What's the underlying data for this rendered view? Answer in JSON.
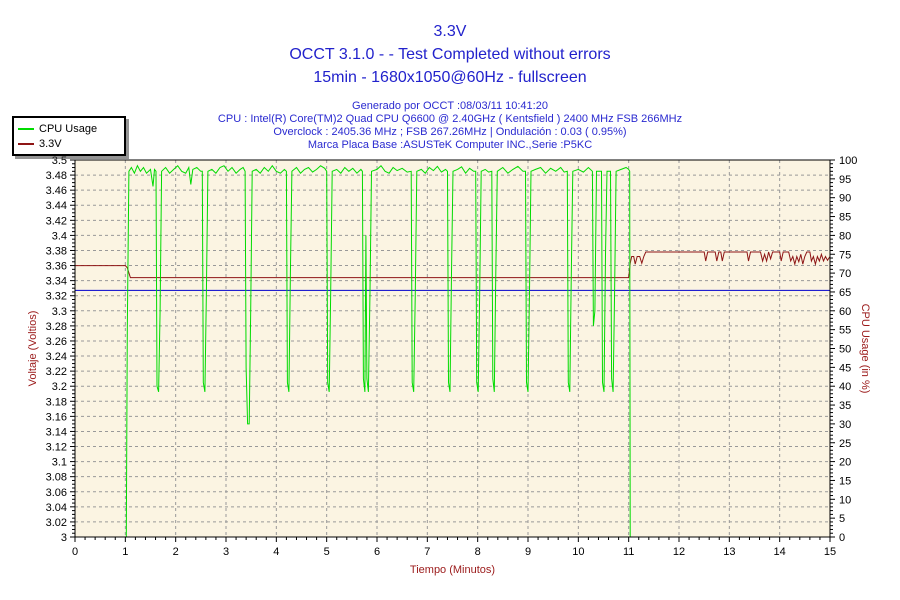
{
  "header": {
    "title": "3.3V",
    "subtitle": "OCCT 3.1.0 -  - Test Completed without errors",
    "subtitle2": "15min - 1680x1050@60Hz - fullscreen",
    "info_lines": [
      "Generado por OCCT :08/03/11 10:41:20",
      "CPU : Intel(R) Core(TM)2 Quad CPU Q6600 @ 2.40GHz ( Kentsfield ) 2400 MHz FSB 266MHz",
      "Overclock : 2405.36 MHz ; FSB 267.26MHz | Ondulación : 0.03 ( 0.95%)",
      "Marca Placa Base :ASUSTeK Computer INC.,Serie :P5KC"
    ]
  },
  "legend": {
    "items": [
      {
        "label": "CPU Usage",
        "color": "#00db00"
      },
      {
        "label": "3.3V",
        "color": "#8e1515"
      }
    ]
  },
  "colors": {
    "title_text": "#2222cc",
    "axis_title_text": "#9b1a1a",
    "tick_text": "#000000",
    "plot_background": "#fbf4e2",
    "grid": "#999999",
    "axis": "#000000",
    "min_marker": "#0000cd"
  },
  "chart_data": {
    "type": "line",
    "title": "3.3V",
    "xlabel": "Tiempo (Minutos)",
    "ylabel_left": "Voltaje (Voltios)",
    "ylabel_right": "CPU Usage (in %)",
    "x_axis": {
      "min": 0,
      "max": 15,
      "major_tick": 1,
      "minor_tick": 0.2
    },
    "y_left": {
      "min": 3.0,
      "max": 3.5,
      "major_tick": 0.02,
      "minor_tick": 0.005
    },
    "y_right": {
      "min": 0,
      "max": 100,
      "major_tick": 5,
      "minor_tick": 1
    },
    "grid": true,
    "legend_position": "top-left",
    "series": [
      {
        "name": "CPU Usage",
        "axis": "right",
        "color": "#00db00",
        "points": [
          [
            1.02,
            0
          ],
          [
            1.04,
            55
          ],
          [
            1.07,
            97
          ],
          [
            1.12,
            98
          ],
          [
            1.18,
            96.5
          ],
          [
            1.24,
            98.5
          ],
          [
            1.3,
            97
          ],
          [
            1.36,
            98
          ],
          [
            1.42,
            96.5
          ],
          [
            1.5,
            97.5
          ],
          [
            1.55,
            93
          ],
          [
            1.58,
            97.5
          ],
          [
            1.61,
            97
          ],
          [
            1.63,
            40
          ],
          [
            1.66,
            38.5
          ],
          [
            1.69,
            60
          ],
          [
            1.72,
            97
          ],
          [
            1.8,
            98
          ],
          [
            1.88,
            96.5
          ],
          [
            1.96,
            97.5
          ],
          [
            2.04,
            98.5
          ],
          [
            2.12,
            97
          ],
          [
            2.2,
            96.5
          ],
          [
            2.26,
            98
          ],
          [
            2.3,
            93.5
          ],
          [
            2.34,
            97.5
          ],
          [
            2.42,
            98
          ],
          [
            2.5,
            97
          ],
          [
            2.53,
            97
          ],
          [
            2.55,
            41
          ],
          [
            2.58,
            38.5
          ],
          [
            2.61,
            65
          ],
          [
            2.64,
            97
          ],
          [
            2.72,
            97.5
          ],
          [
            2.8,
            96.5
          ],
          [
            2.88,
            98
          ],
          [
            2.96,
            98.5
          ],
          [
            3.04,
            97
          ],
          [
            3.12,
            98
          ],
          [
            3.2,
            96.5
          ],
          [
            3.28,
            97.5
          ],
          [
            3.34,
            98
          ],
          [
            3.38,
            97
          ],
          [
            3.4,
            45
          ],
          [
            3.43,
            30
          ],
          [
            3.46,
            30
          ],
          [
            3.49,
            60
          ],
          [
            3.52,
            97
          ],
          [
            3.6,
            97.5
          ],
          [
            3.68,
            96.5
          ],
          [
            3.76,
            98
          ],
          [
            3.84,
            97
          ],
          [
            3.92,
            98.5
          ],
          [
            4.0,
            97
          ],
          [
            4.08,
            96.5
          ],
          [
            4.16,
            97.5
          ],
          [
            4.2,
            97
          ],
          [
            4.22,
            41
          ],
          [
            4.25,
            38.5
          ],
          [
            4.28,
            70
          ],
          [
            4.31,
            97
          ],
          [
            4.4,
            98
          ],
          [
            4.48,
            96.5
          ],
          [
            4.56,
            97.5
          ],
          [
            4.64,
            98
          ],
          [
            4.72,
            96.8
          ],
          [
            4.8,
            97.5
          ],
          [
            4.88,
            98.5
          ],
          [
            4.96,
            97.8
          ],
          [
            5.0,
            97
          ],
          [
            5.02,
            41
          ],
          [
            5.05,
            38.5
          ],
          [
            5.08,
            65
          ],
          [
            5.11,
            97
          ],
          [
            5.2,
            97.5
          ],
          [
            5.28,
            96.5
          ],
          [
            5.36,
            98
          ],
          [
            5.44,
            97
          ],
          [
            5.52,
            97.8
          ],
          [
            5.6,
            96.5
          ],
          [
            5.68,
            97.5
          ],
          [
            5.71,
            97
          ],
          [
            5.73,
            42
          ],
          [
            5.76,
            38.5
          ],
          [
            5.78,
            80
          ],
          [
            5.8,
            42
          ],
          [
            5.83,
            38.5
          ],
          [
            5.86,
            65
          ],
          [
            5.89,
            97
          ],
          [
            6.0,
            97.5
          ],
          [
            6.08,
            98.5
          ],
          [
            6.16,
            97
          ],
          [
            6.24,
            96.5
          ],
          [
            6.32,
            98
          ],
          [
            6.4,
            97.2
          ],
          [
            6.5,
            97.8
          ],
          [
            6.6,
            96.8
          ],
          [
            6.68,
            97
          ],
          [
            6.7,
            41
          ],
          [
            6.73,
            38.5
          ],
          [
            6.76,
            65
          ],
          [
            6.79,
            97
          ],
          [
            6.88,
            97.5
          ],
          [
            6.96,
            96.5
          ],
          [
            7.04,
            98
          ],
          [
            7.12,
            97.2
          ],
          [
            7.2,
            98.3
          ],
          [
            7.28,
            96.8
          ],
          [
            7.36,
            97.5
          ],
          [
            7.4,
            97
          ],
          [
            7.42,
            41
          ],
          [
            7.45,
            38.5
          ],
          [
            7.48,
            70
          ],
          [
            7.51,
            97
          ],
          [
            7.6,
            97.5
          ],
          [
            7.68,
            98.2
          ],
          [
            7.76,
            96.5
          ],
          [
            7.84,
            97.8
          ],
          [
            7.92,
            97
          ],
          [
            7.96,
            97
          ],
          [
            7.98,
            41
          ],
          [
            8.01,
            38.5
          ],
          [
            8.04,
            65
          ],
          [
            8.07,
            97
          ],
          [
            8.15,
            97.5
          ],
          [
            8.22,
            96.8
          ],
          [
            8.28,
            97
          ],
          [
            8.3,
            42
          ],
          [
            8.33,
            38.5
          ],
          [
            8.36,
            70
          ],
          [
            8.39,
            97
          ],
          [
            8.5,
            98
          ],
          [
            8.6,
            96.5
          ],
          [
            8.7,
            97.5
          ],
          [
            8.8,
            98.3
          ],
          [
            8.9,
            97
          ],
          [
            8.95,
            97
          ],
          [
            8.97,
            41
          ],
          [
            9.0,
            38.5
          ],
          [
            9.03,
            65
          ],
          [
            9.06,
            97
          ],
          [
            9.15,
            97.5
          ],
          [
            9.25,
            98
          ],
          [
            9.35,
            96.5
          ],
          [
            9.45,
            97.8
          ],
          [
            9.55,
            97
          ],
          [
            9.65,
            98
          ],
          [
            9.72,
            96.8
          ],
          [
            9.78,
            97
          ],
          [
            9.8,
            41
          ],
          [
            9.83,
            38.5
          ],
          [
            9.86,
            70
          ],
          [
            9.89,
            97
          ],
          [
            10.0,
            97.5
          ],
          [
            10.1,
            96.8
          ],
          [
            10.2,
            98
          ],
          [
            10.28,
            97
          ],
          [
            10.3,
            56
          ],
          [
            10.33,
            60
          ],
          [
            10.36,
            97
          ],
          [
            10.46,
            97
          ],
          [
            10.48,
            41
          ],
          [
            10.51,
            38.5
          ],
          [
            10.54,
            75
          ],
          [
            10.57,
            97
          ],
          [
            10.64,
            97
          ],
          [
            10.66,
            42
          ],
          [
            10.69,
            38.5
          ],
          [
            10.72,
            65
          ],
          [
            10.75,
            97
          ],
          [
            10.85,
            97.5
          ],
          [
            10.95,
            98
          ],
          [
            11.0,
            97.5
          ],
          [
            11.02,
            97
          ],
          [
            11.03,
            0
          ]
        ]
      },
      {
        "name": "3.3V",
        "axis": "left",
        "color": "#8e1515",
        "points": [
          [
            0,
            3.36
          ],
          [
            1.0,
            3.36
          ],
          [
            1.04,
            3.357
          ],
          [
            1.1,
            3.344
          ],
          [
            4.0,
            3.344
          ],
          [
            8.0,
            3.344
          ],
          [
            11.0,
            3.344
          ],
          [
            11.03,
            3.363
          ],
          [
            11.06,
            3.372
          ],
          [
            11.1,
            3.372
          ],
          [
            11.13,
            3.362
          ],
          [
            11.17,
            3.372
          ],
          [
            11.22,
            3.372
          ],
          [
            11.26,
            3.363
          ],
          [
            11.3,
            3.372
          ],
          [
            11.34,
            3.378
          ],
          [
            12.5,
            3.378
          ],
          [
            12.53,
            3.366
          ],
          [
            12.57,
            3.378
          ],
          [
            12.72,
            3.378
          ],
          [
            12.75,
            3.366
          ],
          [
            12.79,
            3.378
          ],
          [
            12.83,
            3.378
          ],
          [
            12.86,
            3.366
          ],
          [
            12.9,
            3.378
          ],
          [
            13.35,
            3.378
          ],
          [
            13.38,
            3.366
          ],
          [
            13.42,
            3.378
          ],
          [
            13.62,
            3.378
          ],
          [
            13.66,
            3.366
          ],
          [
            13.7,
            3.375
          ],
          [
            13.74,
            3.366
          ],
          [
            13.78,
            3.378
          ],
          [
            13.82,
            3.369
          ],
          [
            13.86,
            3.378
          ],
          [
            14.0,
            3.378
          ],
          [
            14.03,
            3.366
          ],
          [
            14.07,
            3.378
          ],
          [
            14.18,
            3.378
          ],
          [
            14.22,
            3.366
          ],
          [
            14.26,
            3.372
          ],
          [
            14.3,
            3.362
          ],
          [
            14.34,
            3.372
          ],
          [
            14.38,
            3.365
          ],
          [
            14.42,
            3.375
          ],
          [
            14.46,
            3.362
          ],
          [
            14.5,
            3.372
          ],
          [
            14.54,
            3.378
          ],
          [
            14.6,
            3.378
          ],
          [
            14.63,
            3.366
          ],
          [
            14.67,
            3.372
          ],
          [
            14.71,
            3.362
          ],
          [
            14.75,
            3.372
          ],
          [
            14.79,
            3.366
          ],
          [
            14.83,
            3.375
          ],
          [
            14.87,
            3.366
          ],
          [
            14.91,
            3.372
          ],
          [
            14.95,
            3.367
          ],
          [
            15.0,
            3.372
          ]
        ]
      },
      {
        "name": "3.3V minimum marker",
        "axis": "left",
        "color": "#0000cd",
        "points": [
          [
            0,
            3.327
          ],
          [
            15,
            3.327
          ]
        ]
      }
    ]
  }
}
